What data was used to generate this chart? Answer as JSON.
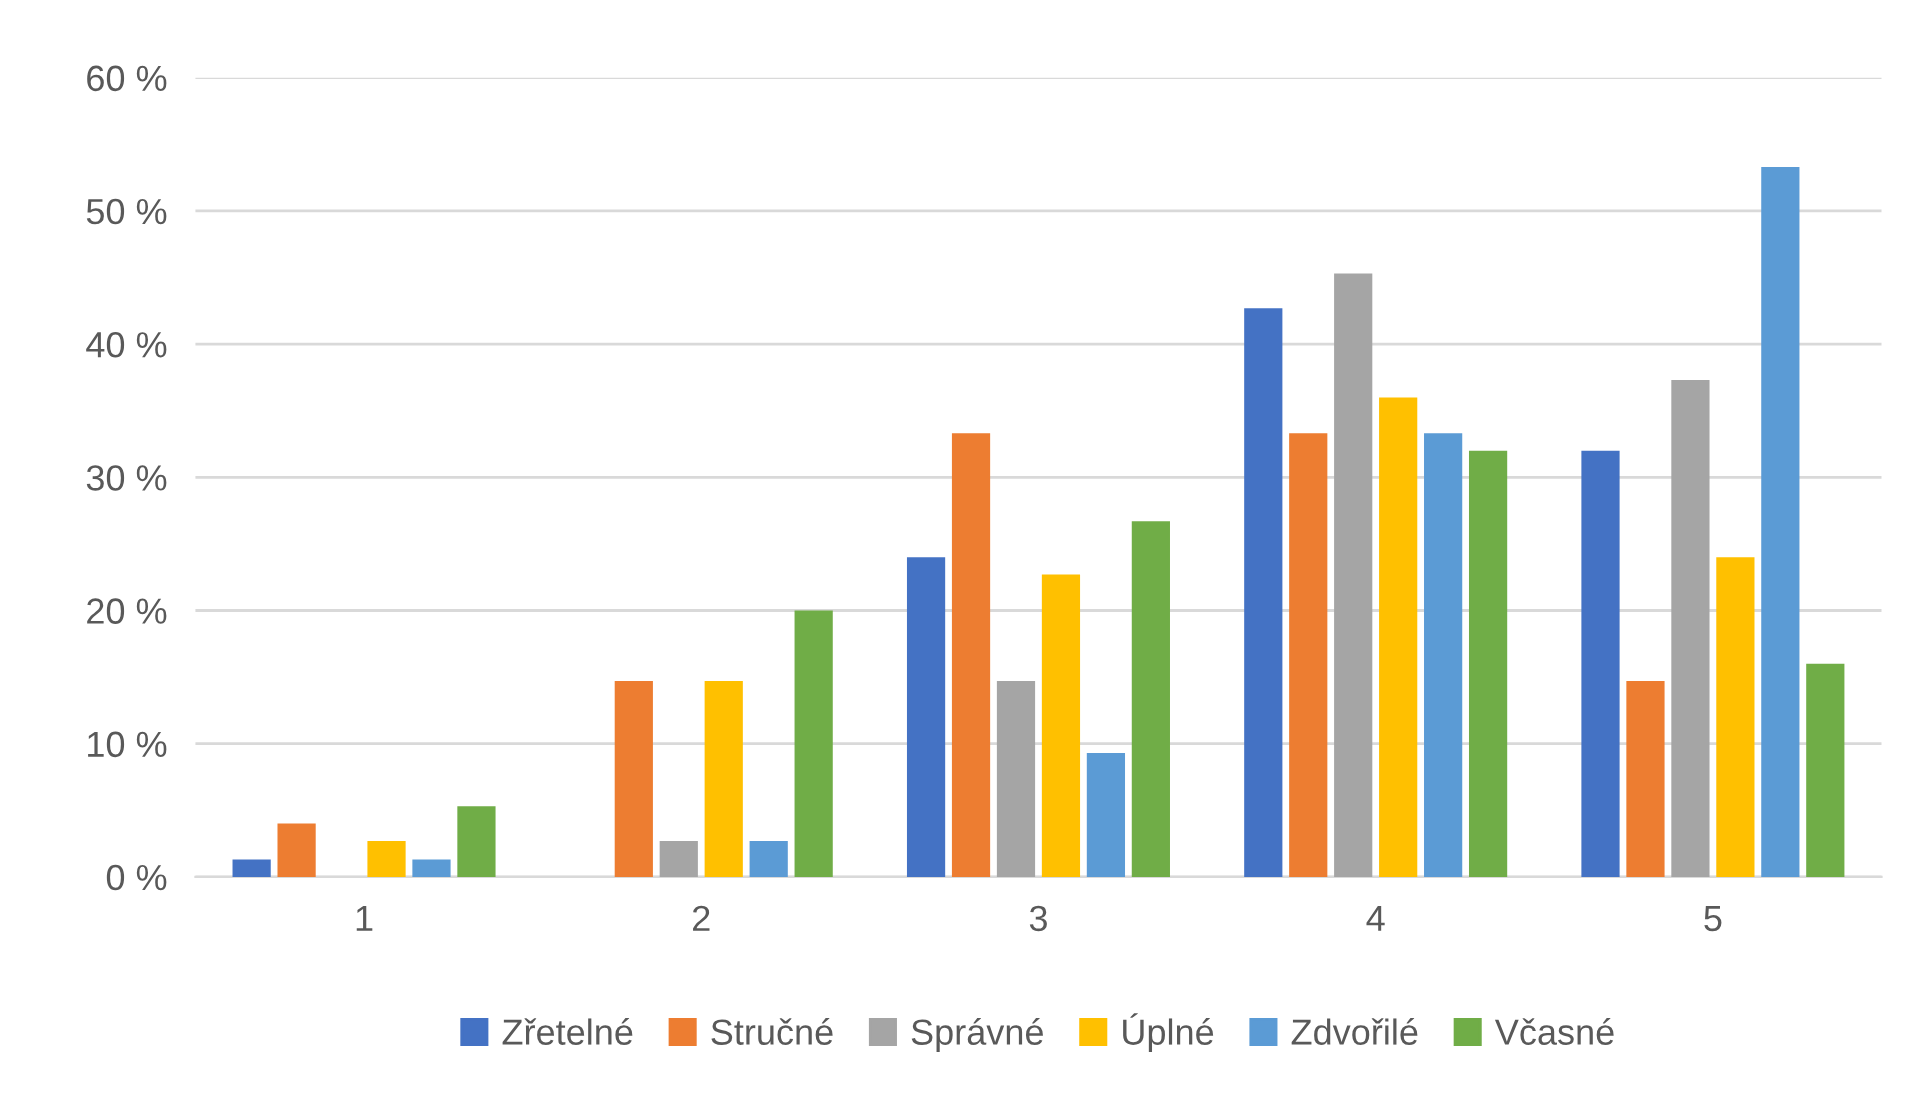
{
  "chart_data": {
    "type": "bar",
    "categories": [
      "1",
      "2",
      "3",
      "4",
      "5"
    ],
    "series": [
      {
        "name": "Zřetelné",
        "color": "#4472c4",
        "values": [
          1.3,
          0,
          24,
          42.7,
          32
        ]
      },
      {
        "name": "Stručné",
        "color": "#ed7d31",
        "values": [
          4.0,
          14.7,
          33.3,
          33.3,
          14.7
        ]
      },
      {
        "name": "Správné",
        "color": "#a5a5a5",
        "values": [
          0,
          2.7,
          14.7,
          45.3,
          37.3
        ]
      },
      {
        "name": "Úplné",
        "color": "#ffc000",
        "values": [
          2.7,
          14.7,
          22.7,
          36,
          24
        ]
      },
      {
        "name": "Zdvořilé",
        "color": "#5b9bd5",
        "values": [
          1.3,
          2.7,
          9.3,
          33.3,
          53.3
        ]
      },
      {
        "name": "Včasné",
        "color": "#70ad47",
        "values": [
          5.3,
          20,
          26.7,
          32,
          16
        ]
      }
    ],
    "ylim": [
      0,
      60
    ],
    "yticks": [
      {
        "value": 0,
        "label": "0 %"
      },
      {
        "value": 10,
        "label": "10 %"
      },
      {
        "value": 20,
        "label": "20 %"
      },
      {
        "value": 30,
        "label": "30 %"
      },
      {
        "value": 40,
        "label": "40 %"
      },
      {
        "value": 50,
        "label": "50 %"
      },
      {
        "value": 60,
        "label": "60 %"
      }
    ],
    "grid": "y",
    "legend": "bottom"
  }
}
